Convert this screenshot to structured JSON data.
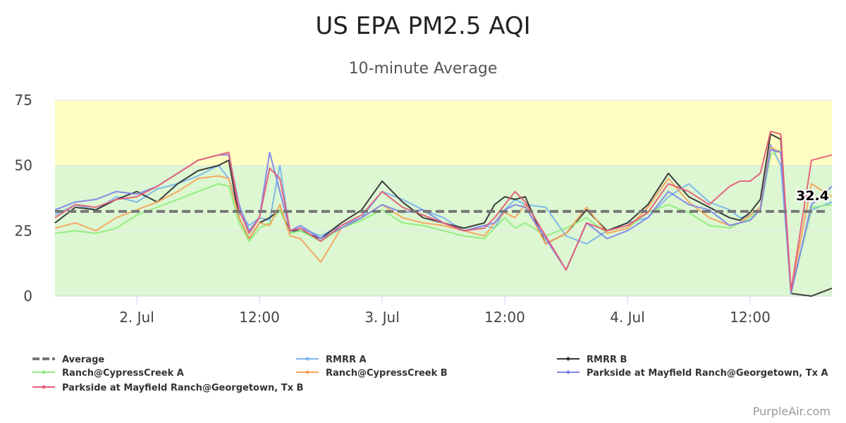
{
  "chart_data": {
    "type": "line",
    "title": "US EPA PM2.5 AQI",
    "subtitle": "10-minute Average",
    "credit": "PurpleAir.com",
    "ylim": [
      0,
      75
    ],
    "yticks": [
      "0",
      "25",
      "50",
      "75"
    ],
    "xlim": [
      "2024-07-01 16:00",
      "2024-07-04 20:00"
    ],
    "xticks": [
      {
        "label": "2. Jul",
        "x": "2024-07-02 00:00"
      },
      {
        "label": "12:00",
        "x": "2024-07-02 12:00"
      },
      {
        "label": "3. Jul",
        "x": "2024-07-03 00:00"
      },
      {
        "label": "12:00",
        "x": "2024-07-03 12:00"
      },
      {
        "label": "4. Jul",
        "x": "2024-07-04 00:00"
      },
      {
        "label": "12:00",
        "x": "2024-07-04 12:00"
      }
    ],
    "bands": [
      {
        "from": 0,
        "to": 50,
        "color": "#dcf7d2"
      },
      {
        "from": 50,
        "to": 75,
        "color": "#fffdc2"
      }
    ],
    "average": {
      "name": "Average",
      "value": 32.4,
      "label": "32.4",
      "color": "#777777"
    },
    "x": [
      "2024-07-01 16:00",
      "2024-07-01 18:00",
      "2024-07-01 20:00",
      "2024-07-01 22:00",
      "2024-07-02 00:00",
      "2024-07-02 02:00",
      "2024-07-02 04:00",
      "2024-07-02 06:00",
      "2024-07-02 08:00",
      "2024-07-02 09:00",
      "2024-07-02 10:00",
      "2024-07-02 11:00",
      "2024-07-02 12:00",
      "2024-07-02 13:00",
      "2024-07-02 14:00",
      "2024-07-02 15:00",
      "2024-07-02 16:00",
      "2024-07-02 18:00",
      "2024-07-02 20:00",
      "2024-07-02 22:00",
      "2024-07-03 00:00",
      "2024-07-03 02:00",
      "2024-07-03 04:00",
      "2024-07-03 06:00",
      "2024-07-03 08:00",
      "2024-07-03 10:00",
      "2024-07-03 11:00",
      "2024-07-03 12:00",
      "2024-07-03 13:00",
      "2024-07-03 14:00",
      "2024-07-03 16:00",
      "2024-07-03 18:00",
      "2024-07-03 20:00",
      "2024-07-03 22:00",
      "2024-07-04 00:00",
      "2024-07-04 02:00",
      "2024-07-04 04:00",
      "2024-07-04 06:00",
      "2024-07-04 08:00",
      "2024-07-04 10:00",
      "2024-07-04 11:00",
      "2024-07-04 12:00",
      "2024-07-04 13:00",
      "2024-07-04 14:00",
      "2024-07-04 15:00",
      "2024-07-04 16:00",
      "2024-07-04 18:00",
      "2024-07-04 20:00"
    ],
    "series": [
      {
        "name": "RMRR A",
        "color": "#7cb5ec",
        "values": [
          31,
          35,
          33,
          38,
          36,
          41,
          43,
          46,
          50,
          45,
          32,
          27,
          30,
          29,
          50,
          24,
          26,
          23,
          27,
          30,
          40,
          37,
          33,
          30,
          25,
          27,
          26,
          33,
          37,
          35,
          34,
          23,
          20,
          25,
          28,
          30,
          38,
          43,
          36,
          33,
          30,
          31,
          34,
          58,
          50,
          2,
          33,
          36
        ]
      },
      {
        "name": "RMRR B",
        "color": "#333333",
        "values": [
          28,
          34,
          33,
          37,
          40,
          36,
          43,
          48,
          50,
          52,
          30,
          22,
          28,
          30,
          33,
          25,
          25,
          22,
          28,
          33,
          44,
          36,
          30,
          28,
          26,
          28,
          35,
          38,
          37,
          38,
          20,
          24,
          33,
          25,
          28,
          35,
          47,
          38,
          34,
          30,
          29,
          32,
          37,
          62,
          60,
          1,
          0,
          3
        ]
      },
      {
        "name": "Ranch@CypressCreek A",
        "color": "#90ed7d",
        "values": [
          24,
          25,
          24,
          26,
          31,
          34,
          37,
          40,
          43,
          42,
          28,
          21,
          26,
          28,
          33,
          24,
          25,
          21,
          26,
          29,
          33,
          28,
          27,
          25,
          23,
          22,
          26,
          30,
          26,
          28,
          23,
          26,
          30,
          24,
          26,
          32,
          35,
          32,
          27,
          26,
          28,
          30,
          33,
          54,
          56,
          1,
          34,
          35
        ]
      },
      {
        "name": "Ranch@CypressCreek B",
        "color": "#f7a35c",
        "values": [
          26,
          28,
          25,
          30,
          33,
          36,
          40,
          45,
          46,
          45,
          30,
          22,
          28,
          27,
          35,
          23,
          22,
          13,
          26,
          30,
          35,
          30,
          28,
          27,
          25,
          23,
          28,
          32,
          30,
          35,
          20,
          24,
          34,
          24,
          26,
          34,
          45,
          36,
          30,
          27,
          28,
          31,
          34,
          57,
          55,
          2,
          43,
          38
        ]
      },
      {
        "name": "Parkside at Mayfield Ranch@Georgetown, Tx A",
        "color": "#8085e9",
        "values": [
          33,
          36,
          37,
          40,
          39,
          42,
          47,
          52,
          54,
          54,
          35,
          25,
          30,
          55,
          40,
          25,
          27,
          22,
          26,
          30,
          35,
          32,
          33,
          28,
          25,
          27,
          28,
          33,
          35,
          34,
          22,
          10,
          28,
          22,
          25,
          30,
          40,
          35,
          33,
          27,
          28,
          29,
          33,
          56,
          55,
          1,
          35,
          42
        ]
      },
      {
        "name": "Parkside at Mayfield Ranch@Georgetown, Tx B",
        "color": "#e55c77",
        "values": [
          30,
          35,
          34,
          37,
          38,
          42,
          47,
          52,
          54,
          55,
          33,
          24,
          30,
          49,
          45,
          25,
          26,
          21,
          27,
          31,
          40,
          34,
          31,
          28,
          25,
          26,
          30,
          35,
          40,
          36,
          23,
          10,
          28,
          25,
          27,
          32,
          43,
          40,
          35,
          42,
          44,
          44,
          47,
          63,
          62,
          2,
          52,
          54
        ]
      }
    ],
    "legend": {
      "placement": "bottom",
      "items": [
        "Average",
        "RMRR A",
        "RMRR B",
        "Ranch@CypressCreek A",
        "Ranch@CypressCreek B",
        "Parkside at Mayfield Ranch@Georgetown, Tx A",
        "Parkside at Mayfield Ranch@Georgetown, Tx B"
      ]
    },
    "grid": true
  }
}
